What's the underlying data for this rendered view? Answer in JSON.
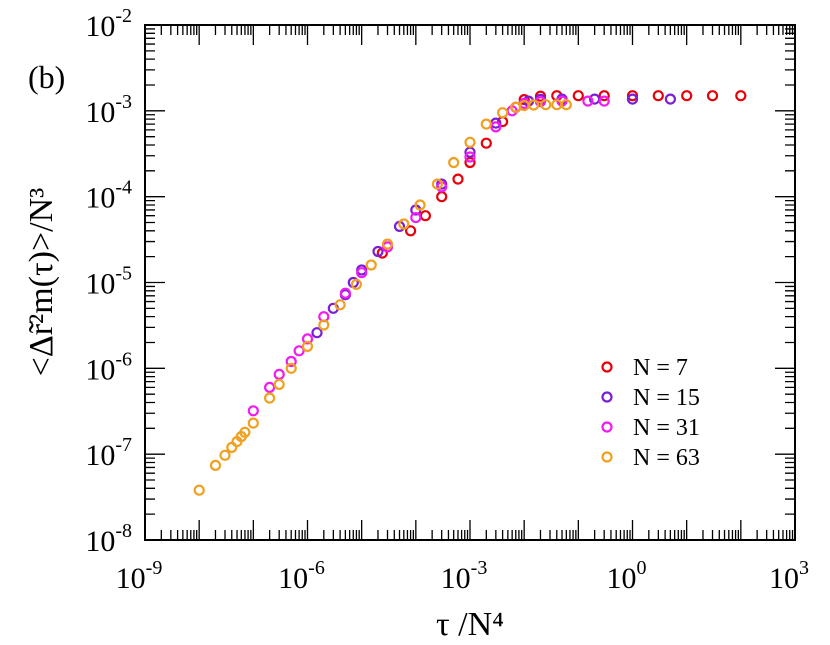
{
  "panel_label": "(b)",
  "chart_data": {
    "type": "scatter",
    "x_scale": "log",
    "y_scale": "log",
    "xlim": [
      1e-09,
      1000
    ],
    "ylim": [
      1e-08,
      0.01
    ],
    "xlabel": "τ /N⁴",
    "ylabel": "<Δr̃²m(τ)>/N³",
    "x_ticks": [
      {
        "mant": "10",
        "exp": "-9",
        "value": 1e-09
      },
      {
        "mant": "10",
        "exp": "-6",
        "value": 1e-06
      },
      {
        "mant": "10",
        "exp": "-3",
        "value": 0.001
      },
      {
        "mant": "10",
        "exp": "0",
        "value": 1
      },
      {
        "mant": "10",
        "exp": "3",
        "value": 1000
      }
    ],
    "y_ticks": [
      {
        "mant": "10",
        "exp": "-8",
        "value": 1e-08
      },
      {
        "mant": "10",
        "exp": "-7",
        "value": 1e-07
      },
      {
        "mant": "10",
        "exp": "-6",
        "value": 1e-06
      },
      {
        "mant": "10",
        "exp": "-5",
        "value": 1e-05
      },
      {
        "mant": "10",
        "exp": "-4",
        "value": 0.0001
      },
      {
        "mant": "10",
        "exp": "-3",
        "value": 0.001
      },
      {
        "mant": "10",
        "exp": "-2",
        "value": 0.01
      }
    ],
    "grid": false,
    "legend_position": "bottom-right",
    "marker": "open-circle",
    "series": [
      {
        "name": "N = 7",
        "color": "#e8000b",
        "x": [
          2.4e-05,
          8e-05,
          0.00015,
          0.0003,
          0.0006,
          0.001,
          0.002,
          0.004,
          0.007,
          0.01,
          0.02,
          0.04,
          0.1,
          0.3,
          1,
          3,
          10,
          30,
          100
        ],
        "y": [
          2.2e-05,
          4e-05,
          6e-05,
          0.0001,
          0.00016,
          0.00025,
          0.00042,
          0.00075,
          0.0011,
          0.00135,
          0.00148,
          0.0015,
          0.0015,
          0.0015,
          0.0015,
          0.0015,
          0.0015,
          0.0015,
          0.0015
        ]
      },
      {
        "name": "N = 15",
        "color": "#7a1fd6",
        "x": [
          1.5e-06,
          3e-06,
          5e-06,
          7e-06,
          1e-05,
          2e-05,
          5e-05,
          0.0001,
          0.0003,
          0.001,
          0.003,
          0.007,
          0.012,
          0.02,
          0.05,
          0.2,
          1,
          5
        ],
        "y": [
          2.6e-06,
          5e-06,
          7.2e-06,
          1e-05,
          1.4e-05,
          2.3e-05,
          4.5e-05,
          7e-05,
          0.00014,
          0.00033,
          0.00072,
          0.0011,
          0.0013,
          0.00136,
          0.00137,
          0.00137,
          0.00137,
          0.00137
        ]
      },
      {
        "name": "N = 31",
        "color": "#f01cf0",
        "x": [
          1e-07,
          2e-07,
          3e-07,
          5e-07,
          7e-07,
          1e-06,
          2e-06,
          5e-06,
          1e-05,
          3e-05,
          0.0001,
          0.0003,
          0.001,
          0.003,
          0.006,
          0.01,
          0.02,
          0.05,
          0.15,
          0.3
        ],
        "y": [
          3.2e-07,
          6e-07,
          8.5e-07,
          1.2e-06,
          1.6e-06,
          2.2e-06,
          4e-06,
          7.5e-06,
          1.3e-05,
          2.6e-05,
          5.7e-05,
          0.00013,
          0.00029,
          0.00065,
          0.001,
          0.00122,
          0.00128,
          0.0013,
          0.0013,
          0.0013
        ]
      },
      {
        "name": "N = 63",
        "color": "#f0a020",
        "x": [
          1e-08,
          2e-08,
          3e-08,
          4e-08,
          5e-08,
          6e-08,
          7e-08,
          1e-07,
          2e-07,
          3e-07,
          5e-07,
          1e-06,
          2e-06,
          4e-06,
          8e-06,
          1.5e-05,
          3e-05,
          6e-05,
          0.00012,
          0.00025,
          0.0005,
          0.001,
          0.002,
          0.004,
          0.007,
          0.01,
          0.015,
          0.025,
          0.04,
          0.06
        ],
        "y": [
          3.8e-08,
          7.4e-08,
          9.7e-08,
          1.2e-07,
          1.4e-07,
          1.6e-07,
          1.8e-07,
          2.3e-07,
          4.5e-07,
          6.5e-07,
          1e-06,
          1.8e-06,
          3.2e-06,
          5.5e-06,
          9.5e-06,
          1.6e-05,
          2.8e-05,
          4.8e-05,
          8e-05,
          0.00014,
          0.00025,
          0.00043,
          0.0007,
          0.00095,
          0.0011,
          0.00115,
          0.00117,
          0.00118,
          0.00118,
          0.00118
        ]
      }
    ]
  }
}
